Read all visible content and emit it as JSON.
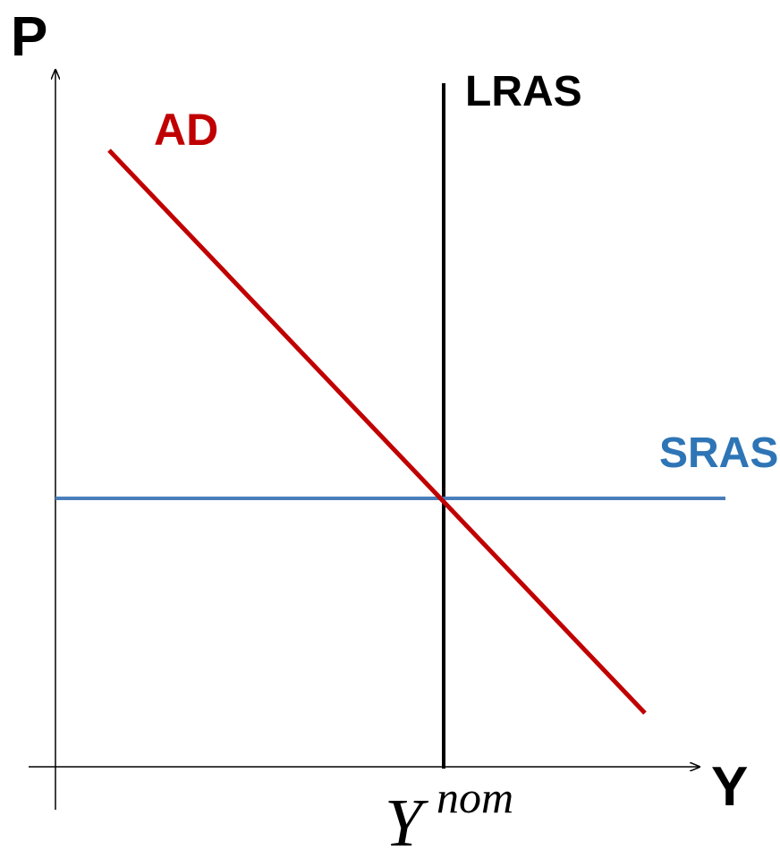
{
  "axes": {
    "y_label": "P",
    "x_label": "Y"
  },
  "curves": [
    {
      "label": "AD"
    },
    {
      "label": "LRAS"
    },
    {
      "label": "SRAS"
    }
  ],
  "x_marker": {
    "base": "Y",
    "superscript": "nom"
  }
}
